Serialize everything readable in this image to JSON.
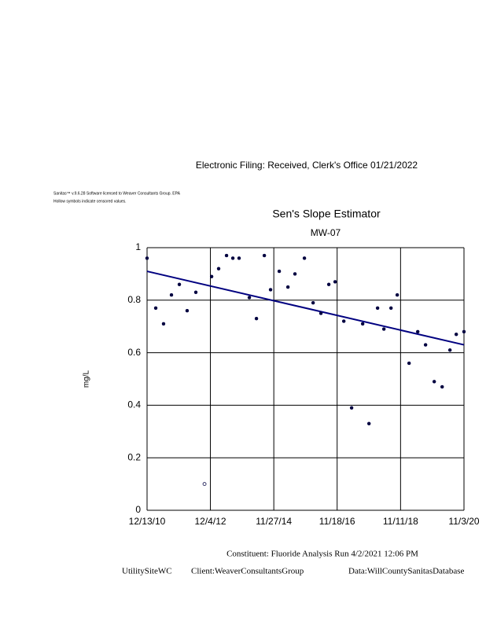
{
  "header": {
    "filing": "Electronic Filing: Received, Clerk's Office 01/21/2022",
    "license": "Sanitas™ v.9.6.28 Software licensed to Weaver Consultants Group. EPA",
    "note": "Hollow symbols indicate censored values."
  },
  "chart_data": {
    "type": "scatter",
    "title": "Sen's Slope Estimator",
    "subtitle": "MW-07",
    "y_label": "mg/L",
    "x": [
      "12/13/10",
      "3/22/11",
      "6/19/11",
      "9/17/11",
      "12/16/11",
      "3/14/12",
      "6/21/12",
      "9/28/12",
      "12/18/12",
      "3/8/13",
      "6/6/13",
      "8/17/13",
      "10/27/13",
      "2/21/14",
      "5/13/14",
      "8/11/14",
      "10/21/14",
      "1/28/15",
      "5/7/15",
      "7/26/15",
      "11/11/15",
      "2/18/16",
      "5/17/16",
      "8/15/16",
      "10/26/16",
      "2/2/17",
      "5/2/17",
      "9/5/17",
      "11/16/17",
      "2/22/18",
      "5/5/18",
      "7/25/18",
      "10/4/18",
      "2/16/19",
      "5/26/19",
      "8/23/19",
      "11/30/19",
      "2/28/20",
      "5/27/20",
      "8/7/20",
      "11/3/20"
    ],
    "values": [
      0.96,
      0.77,
      0.71,
      0.82,
      0.86,
      0.76,
      0.83,
      0.1,
      0.89,
      0.92,
      0.97,
      0.96,
      0.96,
      0.81,
      0.73,
      0.97,
      0.84,
      0.91,
      0.85,
      0.9,
      0.96,
      0.79,
      0.75,
      0.86,
      0.87,
      0.72,
      0.39,
      0.71,
      0.33,
      0.77,
      0.69,
      0.77,
      0.82,
      0.56,
      0.68,
      0.63,
      0.49,
      0.47,
      0.61,
      0.67,
      0.68
    ],
    "hollow": [
      false,
      false,
      false,
      false,
      false,
      false,
      false,
      true,
      false,
      false,
      false,
      false,
      false,
      false,
      false,
      false,
      false,
      false,
      false,
      false,
      false,
      false,
      false,
      false,
      false,
      false,
      false,
      false,
      false,
      false,
      false,
      false,
      false,
      false,
      false,
      false,
      false,
      false,
      false,
      false,
      false
    ],
    "color": "#000040",
    "trend": {
      "x": [
        "12/13/10",
        "11/3/20"
      ],
      "values": [
        0.91,
        0.63
      ],
      "color": "#000080"
    },
    "xlim": [
      "12/13/10",
      "11/3/20"
    ],
    "xticks": [
      "12/13/10",
      "12/4/12",
      "11/27/14",
      "11/18/16",
      "11/11/18",
      "11/3/20"
    ],
    "ylim": [
      0,
      1
    ],
    "yticks": [
      0,
      0.2,
      0.4,
      0.6,
      0.8,
      1
    ],
    "grid": true
  },
  "footer": {
    "constituent": "Constituent: Fluoride Analysis Run 4/2/2021 12:06 PM",
    "site": "UtilitySiteWC",
    "client": "Client:WeaverConsultantsGroup",
    "database": "Data:WillCountySanitasDatabase"
  }
}
